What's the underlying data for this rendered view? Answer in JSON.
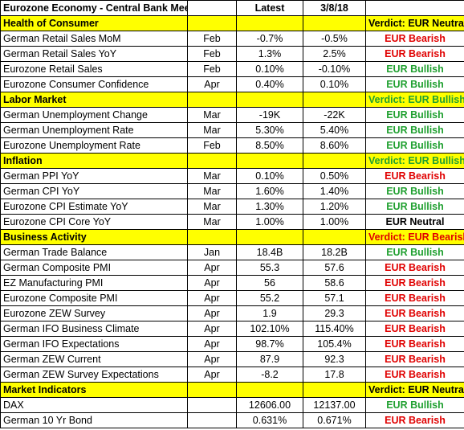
{
  "title": "Eurozone Economy - Central Bank Meeting",
  "header": {
    "latest": "Latest",
    "previous": "3/8/18"
  },
  "colors": {
    "bearish": "#e00000",
    "bullish": "#20a030",
    "neutral": "#000000",
    "section_bg": "#ffff00"
  },
  "sections": [
    {
      "name": "Health of Consumer",
      "verdict": "Verdict: EUR Neutral",
      "verdict_type": "neutral",
      "rows": [
        {
          "indicator": "German Retail Sales MoM",
          "period": "Feb",
          "latest": "-0.7%",
          "previous": "-0.5%",
          "verdict": "EUR Bearish",
          "type": "bearish"
        },
        {
          "indicator": "German Retail Sales YoY",
          "period": "Feb",
          "latest": "1.3%",
          "previous": "2.5%",
          "verdict": "EUR Bearish",
          "type": "bearish"
        },
        {
          "indicator": "Eurozone Retail Sales",
          "period": "Feb",
          "latest": "0.10%",
          "previous": "-0.10%",
          "verdict": "EUR Bullish",
          "type": "bullish"
        },
        {
          "indicator": "Eurozone Consumer Confidence",
          "period": "Apr",
          "latest": "0.40%",
          "previous": "0.10%",
          "verdict": "EUR Bullish",
          "type": "bullish"
        }
      ]
    },
    {
      "name": "Labor Market",
      "verdict": "Verdict: EUR Bullish",
      "verdict_type": "bullish",
      "rows": [
        {
          "indicator": "German Unemployment Change",
          "period": "Mar",
          "latest": "-19K",
          "previous": "-22K",
          "verdict": "EUR Bullish",
          "type": "bullish"
        },
        {
          "indicator": "German Unemployment Rate",
          "period": "Mar",
          "latest": "5.30%",
          "previous": "5.40%",
          "verdict": "EUR Bullish",
          "type": "bullish"
        },
        {
          "indicator": "Eurozone Unemployment Rate",
          "period": "Feb",
          "latest": "8.50%",
          "previous": "8.60%",
          "verdict": "EUR Bullish",
          "type": "bullish"
        }
      ]
    },
    {
      "name": "Inflation",
      "verdict": "Verdict: EUR Bullish",
      "verdict_type": "bullish",
      "rows": [
        {
          "indicator": "German PPI YoY",
          "period": "Mar",
          "latest": "0.10%",
          "previous": "0.50%",
          "verdict": "EUR Bearish",
          "type": "bearish"
        },
        {
          "indicator": "German CPI YoY",
          "period": "Mar",
          "latest": "1.60%",
          "previous": "1.40%",
          "verdict": "EUR Bullish",
          "type": "bullish"
        },
        {
          "indicator": "Eurozone CPI Estimate  YoY",
          "period": "Mar",
          "latest": "1.30%",
          "previous": "1.20%",
          "verdict": "EUR Bullish",
          "type": "bullish"
        },
        {
          "indicator": "Eurozone CPI Core YoY",
          "period": "Mar",
          "latest": "1.00%",
          "previous": "1.00%",
          "verdict": "EUR Neutral",
          "type": "neutral"
        }
      ]
    },
    {
      "name": "Business Activity",
      "verdict": "Verdict: EUR Bearish",
      "verdict_type": "bearish",
      "rows": [
        {
          "indicator": "German Trade Balance",
          "period": "Jan",
          "latest": "18.4B",
          "previous": "18.2B",
          "verdict": "EUR Bullish",
          "type": "bullish"
        },
        {
          "indicator": "German Composite PMI",
          "period": "Apr",
          "latest": "55.3",
          "previous": "57.6",
          "verdict": "EUR Bearish",
          "type": "bearish"
        },
        {
          "indicator": "EZ Manufacturing PMI",
          "period": "Apr",
          "latest": "56",
          "previous": "58.6",
          "verdict": "EUR Bearish",
          "type": "bearish"
        },
        {
          "indicator": "Eurozone Composite PMI",
          "period": "Apr",
          "latest": "55.2",
          "previous": "57.1",
          "verdict": "EUR Bearish",
          "type": "bearish"
        },
        {
          "indicator": "Eurozone ZEW Survey",
          "period": "Apr",
          "latest": "1.9",
          "previous": "29.3",
          "verdict": "EUR Bearish",
          "type": "bearish"
        },
        {
          "indicator": "German IFO Business Climate",
          "period": "Apr",
          "latest": "102.10%",
          "previous": "115.40%",
          "verdict": "EUR Bearish",
          "type": "bearish"
        },
        {
          "indicator": "German IFO Expectations",
          "period": "Apr",
          "latest": "98.7%",
          "previous": "105.4%",
          "verdict": "EUR Bearish",
          "type": "bearish"
        },
        {
          "indicator": "German ZEW Current",
          "period": "Apr",
          "latest": "87.9",
          "previous": "92.3",
          "verdict": "EUR Bearish",
          "type": "bearish"
        },
        {
          "indicator": "German ZEW Survey Expectations",
          "period": "Apr",
          "latest": "-8.2",
          "previous": "17.8",
          "verdict": "EUR Bearish",
          "type": "bearish"
        }
      ]
    },
    {
      "name": "Market Indicators",
      "verdict": "Verdict: EUR Neutral",
      "verdict_type": "neutral",
      "rows": [
        {
          "indicator": "DAX",
          "period": "",
          "latest": "12606.00",
          "previous": "12137.00",
          "verdict": "EUR Bullish",
          "type": "bullish"
        },
        {
          "indicator": "German 10 Yr Bond",
          "period": "",
          "latest": "0.631%",
          "previous": "0.671%",
          "verdict": "EUR Bearish",
          "type": "bearish"
        }
      ]
    }
  ]
}
